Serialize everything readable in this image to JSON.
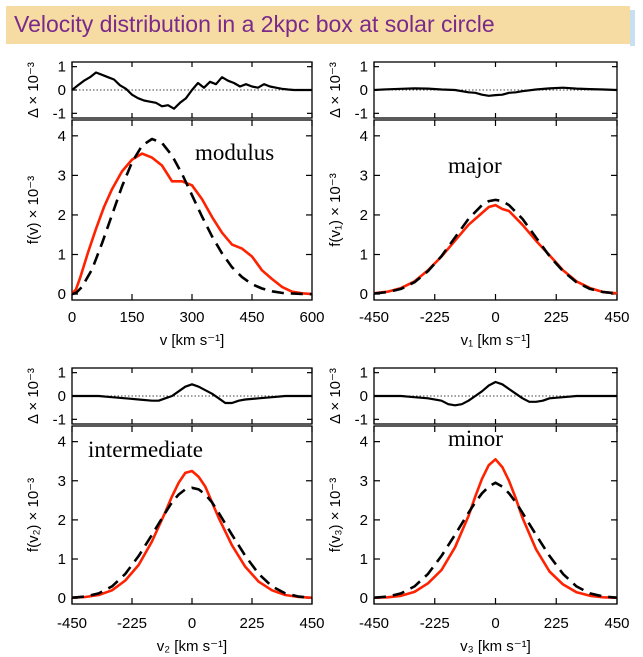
{
  "title": "Velocity distribution in a 2kpc box at solar circle",
  "colors": {
    "simulation": "#ff2200",
    "model": "#000000",
    "residual": "#000000",
    "title_bg": "#f6dba3",
    "title_text": "#7a2a8a"
  },
  "residual_ylabel": "Δ × 10⁻³",
  "chart_data": [
    {
      "type": "line",
      "name": "modulus",
      "panel_label": "modulus",
      "xlabel": "v [km s⁻¹]",
      "ylabel": "f(v) × 10⁻³",
      "xlim": [
        0,
        600
      ],
      "ylim": [
        -0.15,
        4.4
      ],
      "xticks": [
        0,
        150,
        300,
        450,
        600
      ],
      "yticks": [
        0,
        1,
        2,
        3,
        4
      ],
      "series": [
        {
          "role": "simulation",
          "x": [
            0,
            10,
            20,
            40,
            60,
            80,
            100,
            125,
            150,
            175,
            200,
            225,
            250,
            275,
            300,
            325,
            350,
            375,
            400,
            425,
            450,
            475,
            500,
            525,
            550,
            575,
            600
          ],
          "y": [
            0,
            0.12,
            0.4,
            1.05,
            1.65,
            2.2,
            2.65,
            3.1,
            3.4,
            3.55,
            3.45,
            3.25,
            2.85,
            2.85,
            2.75,
            2.4,
            1.95,
            1.55,
            1.25,
            1.15,
            0.95,
            0.6,
            0.38,
            0.18,
            0.06,
            0.02,
            0
          ]
        },
        {
          "role": "model",
          "x": [
            0,
            10,
            25,
            50,
            75,
            100,
            125,
            150,
            175,
            200,
            225,
            250,
            275,
            300,
            325,
            350,
            375,
            400,
            425,
            450,
            475,
            500,
            525,
            550,
            575,
            600
          ],
          "y": [
            0,
            0.03,
            0.18,
            0.62,
            1.28,
            2.0,
            2.72,
            3.33,
            3.75,
            3.92,
            3.82,
            3.5,
            3.04,
            2.5,
            1.96,
            1.46,
            1.03,
            0.68,
            0.43,
            0.25,
            0.14,
            0.07,
            0.03,
            0.015,
            0.005,
            0
          ]
        }
      ],
      "residual": {
        "ylim": [
          -1.2,
          1.2
        ],
        "yticks": [
          -1,
          0,
          1
        ],
        "x": [
          0,
          15,
          30,
          45,
          60,
          75,
          90,
          105,
          120,
          135,
          150,
          165,
          180,
          195,
          210,
          225,
          240,
          255,
          270,
          285,
          300,
          315,
          330,
          345,
          360,
          375,
          390,
          405,
          420,
          435,
          450,
          465,
          480,
          495,
          510,
          525,
          540,
          555,
          570,
          585,
          600
        ],
        "y": [
          0,
          0.2,
          0.4,
          0.55,
          0.75,
          0.65,
          0.55,
          0.45,
          0.2,
          0.05,
          -0.2,
          -0.35,
          -0.45,
          -0.5,
          -0.55,
          -0.7,
          -0.65,
          -0.8,
          -0.55,
          -0.35,
          0,
          0.3,
          0.1,
          0.35,
          0.25,
          0.55,
          0.4,
          0.3,
          0.15,
          0.25,
          0.15,
          0.1,
          0.25,
          0.15,
          0.1,
          0.05,
          0.02,
          0,
          0,
          0,
          0
        ]
      }
    },
    {
      "type": "line",
      "name": "major",
      "panel_label": "major",
      "xlabel": "v₁ [km s⁻¹]",
      "ylabel": "f(v₁) × 10⁻³",
      "xlim": [
        -450,
        450
      ],
      "ylim": [
        -0.15,
        4.4
      ],
      "xticks": [
        -450,
        -225,
        0,
        225,
        450
      ],
      "yticks": [
        0,
        1,
        2,
        3,
        4
      ],
      "series": [
        {
          "role": "simulation",
          "x": [
            -450,
            -400,
            -350,
            -300,
            -250,
            -200,
            -150,
            -100,
            -50,
            -25,
            0,
            25,
            50,
            100,
            150,
            200,
            250,
            300,
            350,
            400,
            450
          ],
          "y": [
            0.02,
            0.06,
            0.15,
            0.32,
            0.6,
            0.95,
            1.35,
            1.75,
            2.05,
            2.2,
            2.25,
            2.15,
            2.1,
            1.75,
            1.35,
            0.98,
            0.6,
            0.32,
            0.15,
            0.05,
            0.02
          ]
        },
        {
          "role": "model",
          "x": [
            -450,
            -400,
            -350,
            -300,
            -250,
            -200,
            -150,
            -100,
            -50,
            -25,
            0,
            25,
            50,
            100,
            150,
            200,
            250,
            300,
            350,
            400,
            450
          ],
          "y": [
            0.015,
            0.05,
            0.13,
            0.3,
            0.58,
            0.96,
            1.43,
            1.9,
            2.25,
            2.35,
            2.38,
            2.35,
            2.25,
            1.9,
            1.43,
            0.96,
            0.58,
            0.3,
            0.13,
            0.05,
            0.015
          ]
        }
      ],
      "residual": {
        "ylim": [
          -1.2,
          1.2
        ],
        "yticks": [
          -1,
          0,
          1
        ],
        "x": [
          -450,
          -400,
          -350,
          -300,
          -250,
          -200,
          -150,
          -100,
          -75,
          -50,
          -25,
          0,
          25,
          50,
          75,
          100,
          150,
          200,
          250,
          300,
          350,
          400,
          450
        ],
        "y": [
          0,
          0.03,
          0.05,
          0.07,
          0.06,
          0.02,
          0,
          -0.1,
          -0.12,
          -0.2,
          -0.25,
          -0.22,
          -0.2,
          -0.12,
          -0.1,
          -0.05,
          0.02,
          0.07,
          0.1,
          0.06,
          0.04,
          0.02,
          0
        ]
      }
    },
    {
      "type": "line",
      "name": "intermediate",
      "panel_label": "intermediate",
      "xlabel": "v₂ [km s⁻¹]",
      "ylabel": "f(v₂) × 10⁻³",
      "xlim": [
        -450,
        450
      ],
      "ylim": [
        -0.15,
        4.4
      ],
      "xticks": [
        -450,
        -225,
        0,
        225,
        450
      ],
      "yticks": [
        0,
        1,
        2,
        3,
        4
      ],
      "series": [
        {
          "role": "simulation",
          "x": [
            -450,
            -400,
            -350,
            -300,
            -250,
            -200,
            -150,
            -100,
            -75,
            -50,
            -25,
            0,
            25,
            50,
            75,
            100,
            150,
            200,
            250,
            300,
            350,
            400,
            450
          ],
          "y": [
            0.01,
            0.03,
            0.08,
            0.2,
            0.45,
            0.85,
            1.45,
            2.2,
            2.6,
            2.95,
            3.2,
            3.25,
            3.1,
            2.85,
            2.45,
            2.05,
            1.35,
            0.8,
            0.42,
            0.2,
            0.08,
            0.03,
            0.01
          ]
        },
        {
          "role": "model",
          "x": [
            -450,
            -400,
            -350,
            -300,
            -250,
            -200,
            -150,
            -100,
            -75,
            -50,
            -25,
            0,
            25,
            50,
            75,
            100,
            150,
            200,
            250,
            300,
            350,
            400,
            450
          ],
          "y": [
            0.01,
            0.04,
            0.12,
            0.3,
            0.62,
            1.08,
            1.62,
            2.18,
            2.45,
            2.65,
            2.78,
            2.82,
            2.78,
            2.65,
            2.45,
            2.18,
            1.62,
            1.08,
            0.62,
            0.3,
            0.12,
            0.04,
            0.01
          ]
        }
      ],
      "residual": {
        "ylim": [
          -1.2,
          1.2
        ],
        "yticks": [
          -1,
          0,
          1
        ],
        "x": [
          -450,
          -400,
          -350,
          -300,
          -250,
          -200,
          -150,
          -125,
          -100,
          -75,
          -50,
          -25,
          0,
          25,
          50,
          75,
          100,
          125,
          150,
          175,
          200,
          250,
          300,
          350,
          400,
          450
        ],
        "y": [
          0,
          0,
          0,
          -0.05,
          -0.1,
          -0.15,
          -0.2,
          -0.2,
          -0.1,
          0,
          0.2,
          0.4,
          0.5,
          0.4,
          0.25,
          0.1,
          -0.1,
          -0.3,
          -0.3,
          -0.2,
          -0.15,
          -0.1,
          -0.05,
          0,
          0,
          0
        ]
      }
    },
    {
      "type": "line",
      "name": "minor",
      "panel_label": "minor",
      "xlabel": "v₃ [km s⁻¹]",
      "ylabel": "f(v₃) × 10⁻³",
      "xlim": [
        -450,
        450
      ],
      "ylim": [
        -0.15,
        4.4
      ],
      "xticks": [
        -450,
        -225,
        0,
        225,
        450
      ],
      "yticks": [
        0,
        1,
        2,
        3,
        4
      ],
      "series": [
        {
          "role": "simulation",
          "x": [
            -450,
            -400,
            -350,
            -300,
            -250,
            -200,
            -150,
            -100,
            -75,
            -50,
            -25,
            0,
            25,
            50,
            75,
            100,
            150,
            200,
            250,
            300,
            350,
            400,
            450
          ],
          "y": [
            0.01,
            0.02,
            0.06,
            0.16,
            0.38,
            0.72,
            1.3,
            2.1,
            2.6,
            3.05,
            3.4,
            3.55,
            3.35,
            3.0,
            2.55,
            2.05,
            1.25,
            0.68,
            0.35,
            0.15,
            0.06,
            0.02,
            0.01
          ]
        },
        {
          "role": "model",
          "x": [
            -450,
            -400,
            -350,
            -300,
            -250,
            -200,
            -150,
            -100,
            -75,
            -50,
            -25,
            0,
            25,
            50,
            75,
            100,
            150,
            200,
            250,
            300,
            350,
            400,
            450
          ],
          "y": [
            0.01,
            0.04,
            0.12,
            0.3,
            0.62,
            1.08,
            1.62,
            2.18,
            2.45,
            2.68,
            2.85,
            2.95,
            2.85,
            2.68,
            2.45,
            2.18,
            1.62,
            1.08,
            0.62,
            0.3,
            0.12,
            0.04,
            0.01
          ]
        }
      ],
      "residual": {
        "ylim": [
          -1.2,
          1.2
        ],
        "yticks": [
          -1,
          0,
          1
        ],
        "x": [
          -450,
          -400,
          -350,
          -300,
          -250,
          -200,
          -175,
          -150,
          -125,
          -100,
          -75,
          -50,
          -25,
          0,
          25,
          50,
          75,
          100,
          125,
          150,
          175,
          200,
          250,
          300,
          350,
          400,
          450
        ],
        "y": [
          0,
          0,
          0,
          -0.05,
          -0.1,
          -0.2,
          -0.35,
          -0.4,
          -0.35,
          -0.2,
          0,
          0.2,
          0.45,
          0.6,
          0.5,
          0.3,
          0.1,
          -0.1,
          -0.25,
          -0.25,
          -0.2,
          -0.1,
          -0.05,
          0,
          0,
          0,
          0
        ]
      }
    }
  ]
}
